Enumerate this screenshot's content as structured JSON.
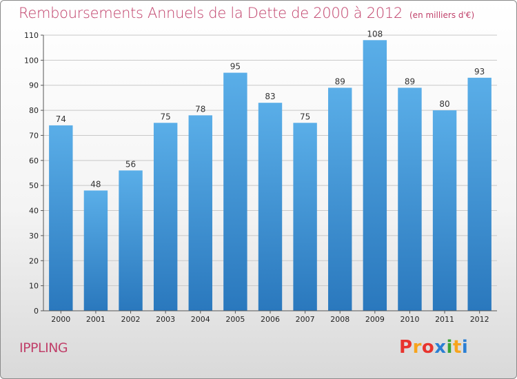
{
  "header": {
    "title": "Remboursements Annuels de la Dette de 2000 à 2012",
    "unit": "(en milliers d'€)"
  },
  "footer": {
    "commune": "IPPLING",
    "logo_text": "Proxiti",
    "logo_colors": [
      "#e8342e",
      "#f7a41d",
      "#e8342e",
      "#2b7fd3",
      "#3aa335",
      "#f7a41d",
      "#2b7fd3"
    ]
  },
  "colors": {
    "bar_top": "#5aaee8",
    "bar_bottom": "#2a78bd",
    "title": "#c0406a"
  },
  "chart_data": {
    "type": "bar",
    "title": "Remboursements Annuels de la Dette de 2000 à 2012",
    "xlabel": "",
    "ylabel": "",
    "categories": [
      "2000",
      "2001",
      "2002",
      "2003",
      "2004",
      "2005",
      "2006",
      "2007",
      "2008",
      "2009",
      "2010",
      "2011",
      "2012"
    ],
    "values": [
      74,
      48,
      56,
      75,
      78,
      95,
      83,
      75,
      89,
      108,
      89,
      80,
      93
    ],
    "ylim": [
      0,
      110
    ],
    "yticks": [
      0,
      10,
      20,
      30,
      40,
      50,
      60,
      70,
      80,
      90,
      100,
      110
    ],
    "grid": true,
    "data_labels": true
  }
}
